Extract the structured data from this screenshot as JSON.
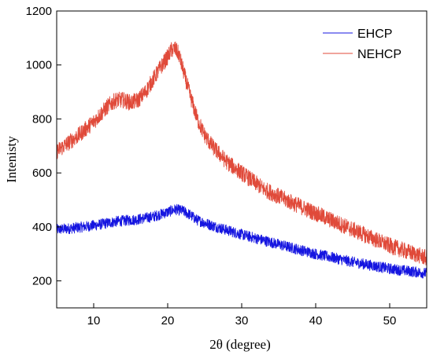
{
  "chart_data": {
    "type": "line",
    "title": "",
    "xlabel": "2θ (degree)",
    "ylabel": "Intenisty",
    "xlim": [
      5,
      55
    ],
    "ylim": [
      100,
      1200
    ],
    "xticks": [
      10,
      20,
      30,
      40,
      50
    ],
    "yticks": [
      200,
      400,
      600,
      800,
      1000,
      1200
    ],
    "grid": false,
    "legend_position": "top-right",
    "series": [
      {
        "name": "EHCP",
        "color": "#1515e0",
        "noise_amplitude": 20,
        "x": [
          5,
          7,
          10,
          13,
          16,
          18,
          20,
          21,
          22,
          23,
          24,
          26,
          28,
          30,
          33,
          36,
          40,
          45,
          50,
          55
        ],
        "y": [
          390,
          395,
          405,
          420,
          428,
          438,
          455,
          465,
          460,
          445,
          425,
          405,
          388,
          372,
          350,
          328,
          300,
          270,
          245,
          228
        ]
      },
      {
        "name": "NEHCP",
        "color": "#e04a3a",
        "noise_amplitude": 30,
        "x": [
          5,
          6,
          8,
          10,
          12,
          13,
          14,
          15,
          16,
          17,
          18,
          19,
          20,
          20.5,
          21,
          21.5,
          22,
          23,
          24,
          25,
          26,
          28,
          30,
          33,
          36,
          40,
          45,
          50,
          55
        ],
        "y": [
          680,
          700,
          740,
          790,
          850,
          870,
          870,
          860,
          870,
          900,
          945,
          990,
          1030,
          1055,
          1060,
          1040,
          990,
          890,
          800,
          740,
          700,
          640,
          600,
          540,
          500,
          450,
          390,
          330,
          285
        ]
      }
    ]
  }
}
